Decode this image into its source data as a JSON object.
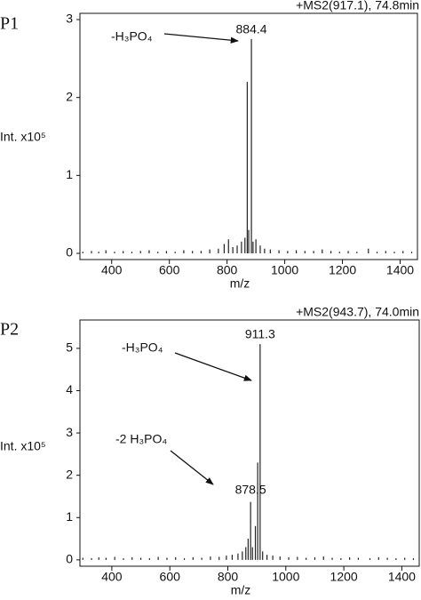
{
  "chart_data": [
    {
      "type": "spectrum",
      "panel_label": "P1",
      "header": "+MS2(917.1), 74.8min",
      "y_label": "Int. x10⁵",
      "x_label": "m/z",
      "x": [
        300,
        330,
        355,
        380,
        410,
        440,
        470,
        500,
        530,
        560,
        590,
        620,
        650,
        680,
        710,
        740,
        770,
        790,
        805,
        820,
        835,
        850,
        862,
        870,
        875,
        884.4,
        890,
        900,
        915,
        930,
        950,
        980,
        1010,
        1040,
        1070,
        1100,
        1130,
        1160,
        1190,
        1220,
        1250,
        1290,
        1320,
        1350,
        1380,
        1410,
        1440
      ],
      "values": [
        0.02,
        0.03,
        0.02,
        0.04,
        0.02,
        0.03,
        0.02,
        0.03,
        0.04,
        0.02,
        0.03,
        0.02,
        0.04,
        0.03,
        0.03,
        0.05,
        0.06,
        0.12,
        0.18,
        0.08,
        0.1,
        0.15,
        0.2,
        2.2,
        0.3,
        2.75,
        0.15,
        0.18,
        0.1,
        0.06,
        0.05,
        0.04,
        0.03,
        0.04,
        0.03,
        0.03,
        0.05,
        0.03,
        0.02,
        0.03,
        0.02,
        0.06,
        0.02,
        0.03,
        0.02,
        0.03,
        0.02
      ],
      "color": "#222222",
      "xlim": [
        290,
        1460
      ],
      "xticks": [
        400,
        600,
        800,
        1000,
        1200,
        1400
      ],
      "ylim": [
        -0.08,
        3.08
      ],
      "yticks": [
        0,
        1,
        2,
        3
      ],
      "annotations": [
        {
          "text": "-H₃PO₄"
        },
        {
          "text": "884.4",
          "x": 884.4
        }
      ]
    },
    {
      "type": "spectrum",
      "panel_label": "P2",
      "header": "+MS2(943.7), 74.0min",
      "y_label": "Int. x10⁵",
      "x_label": "m/z",
      "x": [
        300,
        330,
        355,
        380,
        410,
        440,
        470,
        500,
        530,
        560,
        590,
        620,
        650,
        680,
        710,
        740,
        770,
        795,
        815,
        835,
        850,
        862,
        870,
        878.5,
        885,
        895,
        903,
        911.3,
        920,
        935,
        955,
        980,
        1010,
        1040,
        1070,
        1100,
        1130,
        1160,
        1190,
        1220,
        1250,
        1290,
        1320,
        1350,
        1380,
        1410,
        1440
      ],
      "values": [
        0.05,
        0.04,
        0.06,
        0.05,
        0.07,
        0.04,
        0.06,
        0.05,
        0.04,
        0.07,
        0.05,
        0.06,
        0.04,
        0.06,
        0.05,
        0.08,
        0.07,
        0.1,
        0.12,
        0.15,
        0.2,
        0.3,
        0.5,
        1.37,
        0.3,
        0.8,
        2.3,
        5.1,
        0.2,
        0.12,
        0.1,
        0.08,
        0.06,
        0.07,
        0.05,
        0.06,
        0.08,
        0.05,
        0.04,
        0.06,
        0.05,
        0.04,
        0.06,
        0.05,
        0.04,
        0.05,
        0.04
      ],
      "color": "#222222",
      "xlim": [
        290,
        1460
      ],
      "xticks": [
        400,
        600,
        800,
        1000,
        1200,
        1400
      ],
      "ylim": [
        -0.15,
        5.67
      ],
      "yticks": [
        0,
        1,
        2,
        3,
        4,
        5
      ],
      "annotations": [
        {
          "text": "-H₃PO₄"
        },
        {
          "text": "911.3",
          "x": 911.3
        },
        {
          "text": "-2 H₃PO₄"
        },
        {
          "text": "878.5",
          "x": 878.5
        }
      ]
    }
  ]
}
